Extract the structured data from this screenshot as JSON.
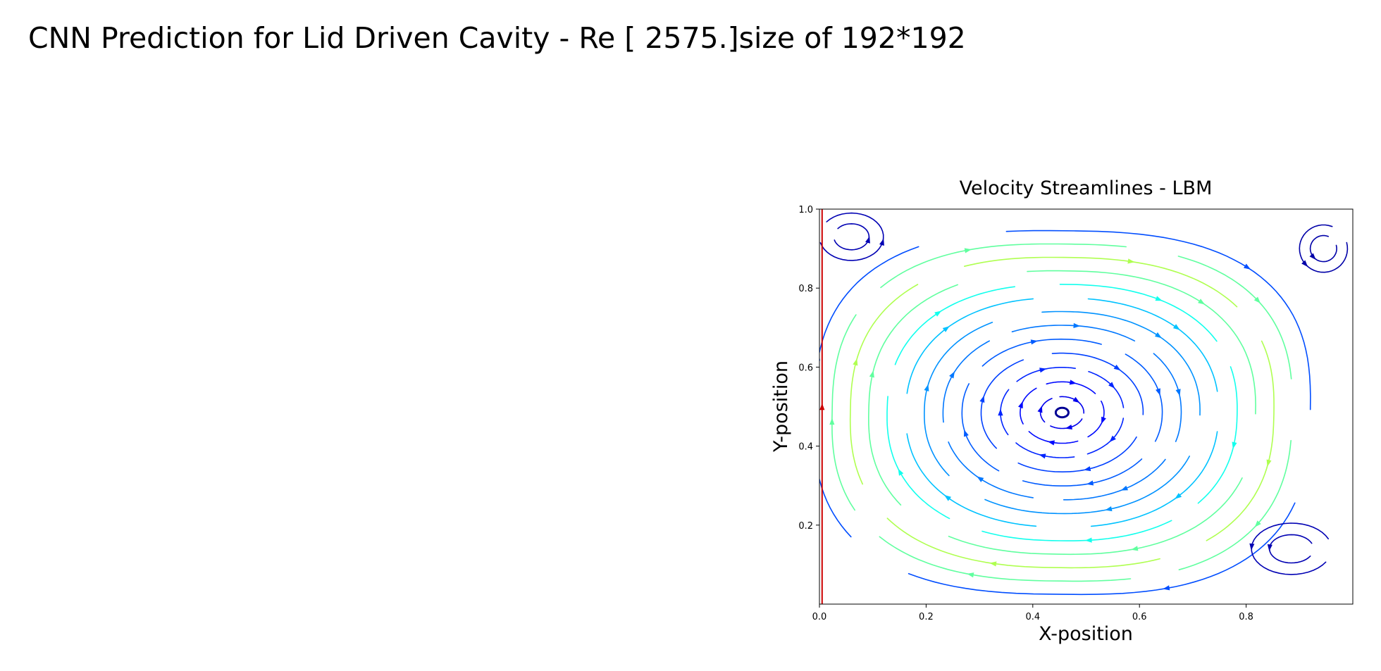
{
  "figure": {
    "suptitle": "CNN Prediction for Lid Driven Cavity - Re [ 2575.]size of 192*192"
  },
  "chart_data": {
    "type": "streamplot",
    "title": "Velocity Streamlines - LBM",
    "xlabel": "X-position",
    "ylabel": "Y-position",
    "xlim": [
      0.0,
      1.0
    ],
    "ylim": [
      0.0,
      1.0
    ],
    "xticks": [
      0.0,
      0.2,
      0.4,
      0.6,
      0.8
    ],
    "xtick_labels": [
      "0.0",
      "0.2",
      "0.4",
      "0.6",
      "0.8"
    ],
    "yticks": [
      0.2,
      0.4,
      0.6,
      0.8,
      1.0
    ],
    "ytick_labels": [
      "0.2",
      "0.4",
      "0.6",
      "0.8",
      "1.0"
    ],
    "grid": false,
    "colormap": "jet",
    "vortex_center": [
      0.455,
      0.485
    ],
    "series": [
      {
        "kind": "wall_line",
        "x": [
          0.005,
          0.005
        ],
        "y": [
          0.0,
          1.0
        ],
        "color": "#cc0000",
        "arrow_y": 0.5
      }
    ]
  }
}
